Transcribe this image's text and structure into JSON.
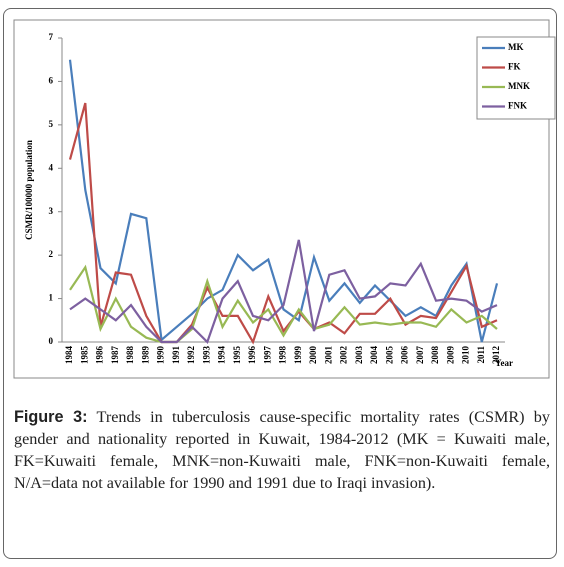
{
  "chart_data": {
    "type": "line",
    "y_label": "CSMR/100000 population",
    "x_label": "Year",
    "categories": [
      "1984",
      "1985",
      "1986",
      "1987",
      "1988",
      "1989",
      "1990",
      "1991",
      "1992",
      "1993",
      "1994",
      "1995",
      "1996",
      "1997",
      "1998",
      "1999",
      "2000",
      "2001",
      "2002",
      "2003",
      "2004",
      "2005",
      "2006",
      "2007",
      "2008",
      "2009",
      "2010",
      "2011",
      "2012"
    ],
    "ylim": [
      0,
      7
    ],
    "yticks": [
      0,
      1,
      2,
      3,
      4,
      5,
      6,
      7
    ],
    "legend": "right",
    "series": [
      {
        "name": "MK",
        "color": "#4a7ebb",
        "values": [
          6.5,
          3.5,
          1.7,
          1.35,
          2.95,
          2.85,
          0.05,
          0.35,
          0.65,
          1.0,
          1.2,
          2.0,
          1.65,
          1.9,
          0.75,
          0.5,
          1.95,
          0.95,
          1.35,
          0.9,
          1.3,
          0.95,
          0.6,
          0.8,
          0.6,
          1.3,
          1.8,
          0.0,
          1.35
        ]
      },
      {
        "name": "FK",
        "color": "#be4b48",
        "values": [
          4.2,
          5.5,
          0.35,
          1.6,
          1.55,
          0.6,
          0.0,
          0.0,
          0.4,
          1.25,
          0.6,
          0.6,
          0.0,
          1.05,
          0.25,
          0.7,
          0.3,
          0.45,
          0.2,
          0.65,
          0.65,
          1.0,
          0.4,
          0.6,
          0.55,
          1.15,
          1.75,
          0.35,
          0.5
        ]
      },
      {
        "name": "MNK",
        "color": "#98b954",
        "values": [
          1.2,
          1.72,
          0.3,
          1.0,
          0.35,
          0.1,
          0.0,
          0.0,
          0.3,
          1.4,
          0.35,
          0.95,
          0.45,
          0.75,
          0.15,
          0.75,
          0.3,
          0.4,
          0.8,
          0.4,
          0.45,
          0.4,
          0.45,
          0.45,
          0.35,
          0.75,
          0.45,
          0.6,
          0.3
        ]
      },
      {
        "name": "FNK",
        "color": "#7d60a0",
        "values": [
          0.75,
          1.0,
          0.75,
          0.5,
          0.85,
          0.35,
          0.0,
          0.0,
          0.35,
          0.0,
          1.0,
          1.4,
          0.6,
          0.5,
          0.85,
          2.35,
          0.25,
          1.55,
          1.65,
          1.0,
          1.05,
          1.35,
          1.3,
          1.8,
          0.95,
          1.0,
          0.95,
          0.7,
          0.85
        ]
      }
    ]
  },
  "caption": {
    "label": "Figure 3:",
    "text": " Trends in tuberculosis cause-specific mortality rates (CSMR) by gender and nationality reported in Kuwait, 1984-2012 (MK = Kuwaiti male, FK=Kuwaiti female, MNK=non-Kuwaiti male, FNK=non-Kuwaiti female, N/A=data not available for 1990 and 1991 due to Iraqi invasion)."
  }
}
